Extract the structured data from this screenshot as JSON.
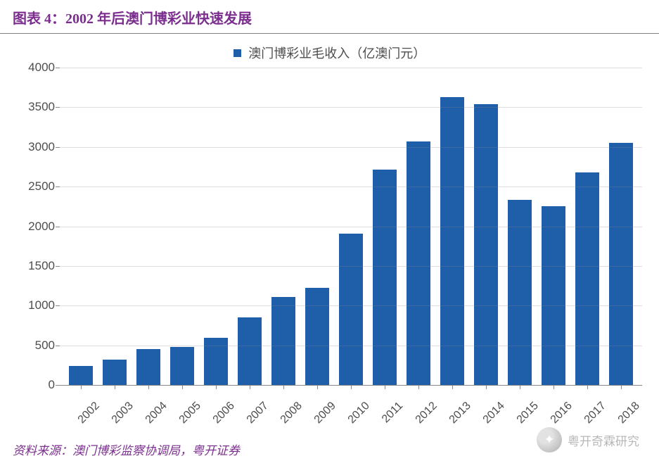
{
  "title": "图表 4：2002 年后澳门博彩业快速发展",
  "legend": {
    "label": "澳门博彩业毛收入（亿澳门元）",
    "swatch_color": "#1f5fa9"
  },
  "chart": {
    "type": "bar",
    "categories": [
      "2002",
      "2003",
      "2004",
      "2005",
      "2006",
      "2007",
      "2008",
      "2009",
      "2010",
      "2011",
      "2012",
      "2013",
      "2014",
      "2015",
      "2016",
      "2017",
      "2018"
    ],
    "values": [
      240,
      320,
      450,
      480,
      590,
      850,
      1110,
      1220,
      1910,
      2710,
      3070,
      3630,
      3540,
      2330,
      2250,
      2680,
      3050
    ],
    "bar_color": "#1f5fa9",
    "bar_width": 0.7,
    "ylim": [
      0,
      4000
    ],
    "ytick_step": 500,
    "background_color": "#ffffff",
    "grid_color": "#888888",
    "axis_color": "#888888",
    "label_color": "#4d4d4d",
    "label_fontsize": 17,
    "xlabel_rotation": -45
  },
  "source": "资料来源：澳门博彩监察协调局，粤开证券",
  "watermark": {
    "text": "粤开奇霖研究"
  }
}
